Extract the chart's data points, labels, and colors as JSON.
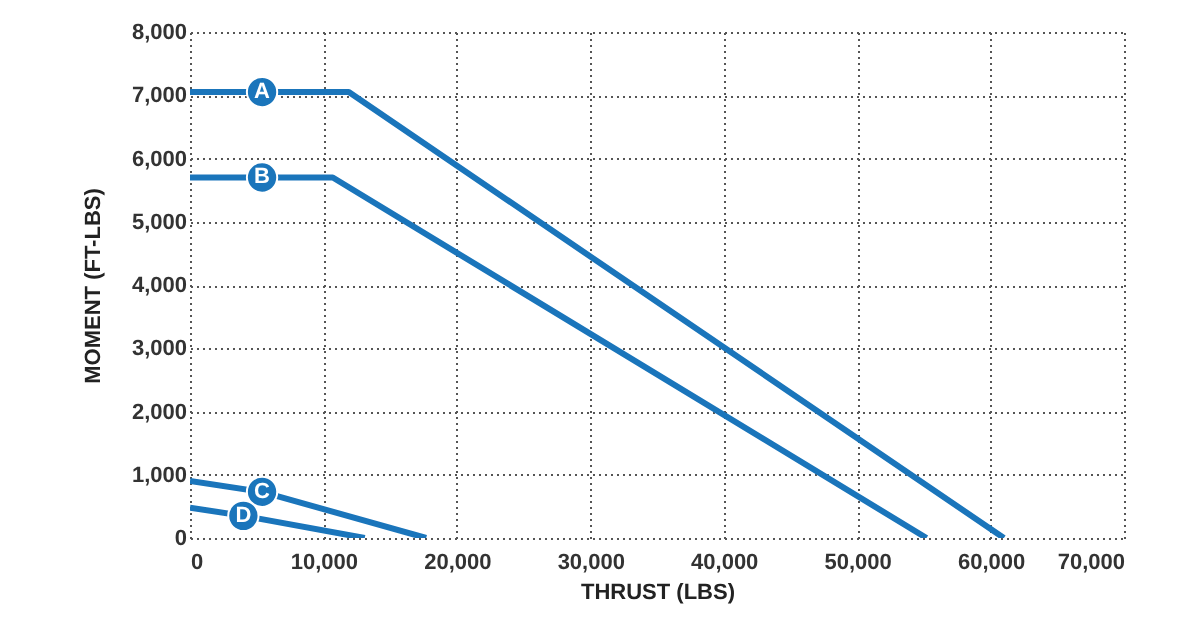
{
  "chart_data": {
    "type": "line",
    "xlabel": "THRUST (LBS)",
    "ylabel": "MOMENT (FT-LBS)",
    "xlim": [
      0,
      70000
    ],
    "xticks": [
      0,
      {
        "value": 10000,
        "label": "10,000"
      },
      {
        "value": 20000,
        "label": "20,000"
      },
      {
        "value": 30000,
        "label": "30,000"
      },
      {
        "value": 40000,
        "label": "40,000"
      },
      {
        "value": 50000,
        "label": "50,000"
      },
      {
        "value": 60000,
        "label": "60,000"
      },
      {
        "value": 70000,
        "label": "70,000"
      }
    ],
    "ylim": [
      0,
      8000
    ],
    "yticks": [
      0,
      {
        "value": 1000,
        "label": "1,000"
      },
      {
        "value": 2000,
        "label": "2,000"
      },
      {
        "value": 3000,
        "label": "3,000"
      },
      {
        "value": 4000,
        "label": "4,000"
      },
      {
        "value": 5000,
        "label": "5,000"
      },
      {
        "value": 6000,
        "label": "6,000"
      },
      {
        "value": 7000,
        "label": "7,000"
      },
      {
        "value": 8000,
        "label": "8,000"
      }
    ],
    "grid": true,
    "series": [
      {
        "name": "A",
        "color": "#1a75bb",
        "x": [
          0,
          5400,
          11900,
          61000
        ],
        "values": [
          7050,
          7050,
          7050,
          0
        ]
      },
      {
        "name": "B",
        "color": "#1a75bb",
        "x": [
          0,
          5400,
          10700,
          55200
        ],
        "values": [
          5700,
          5700,
          5700,
          0
        ]
      },
      {
        "name": "C",
        "color": "#1a75bb",
        "x": [
          0,
          5400,
          17700
        ],
        "values": [
          900,
          730,
          0
        ]
      },
      {
        "name": "D",
        "color": "#1a75bb",
        "x": [
          0,
          4000,
          13100
        ],
        "values": [
          480,
          350,
          0
        ]
      }
    ]
  }
}
